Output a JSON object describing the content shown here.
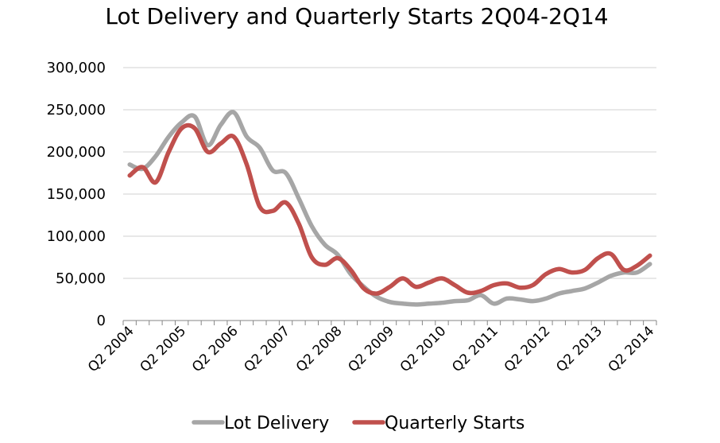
{
  "chart_data": {
    "type": "line",
    "title": "Lot Delivery and Quarterly Starts 2Q04-2Q14",
    "xlabel": "",
    "ylabel": "",
    "ylim": [
      0,
      300000
    ],
    "yticks": [
      0,
      50000,
      100000,
      150000,
      200000,
      250000,
      300000
    ],
    "ytick_labels": [
      "0",
      "50,000",
      "100,000",
      "150,000",
      "200,000",
      "250,000",
      "300,000"
    ],
    "grid": true,
    "legend_position": "bottom",
    "xtick_labels": [
      "Q2 2004",
      "Q2 2005",
      "Q2 2006",
      "Q2 2007",
      "Q2 2008",
      "Q2 2009",
      "Q2 2010",
      "Q2 2011",
      "Q2 2012",
      "Q2 2013",
      "Q2 2014"
    ],
    "xtick_label_every": 4,
    "num_points": 41,
    "series": [
      {
        "name": "Lot Delivery",
        "color": "#a6a6a6",
        "values": [
          185000,
          180000,
          195000,
          218000,
          235000,
          242000,
          208000,
          232000,
          247000,
          218000,
          205000,
          178000,
          175000,
          145000,
          112000,
          90000,
          78000,
          55000,
          40000,
          28000,
          22000,
          20000,
          19000,
          20000,
          21000,
          23000,
          24000,
          30000,
          20000,
          26000,
          25000,
          23000,
          26000,
          32000,
          35000,
          38000,
          45000,
          53000,
          57000,
          57000,
          67000
        ]
      },
      {
        "name": "Quarterly Starts",
        "color": "#c0504d",
        "values": [
          172000,
          182000,
          164000,
          200000,
          228000,
          228000,
          200000,
          210000,
          218000,
          185000,
          135000,
          130000,
          140000,
          115000,
          75000,
          66000,
          74000,
          60000,
          38000,
          32000,
          40000,
          50000,
          40000,
          45000,
          50000,
          42000,
          33000,
          35000,
          42000,
          44000,
          39000,
          42000,
          55000,
          61000,
          57000,
          60000,
          74000,
          79000,
          60000,
          65000,
          77000
        ]
      }
    ]
  }
}
